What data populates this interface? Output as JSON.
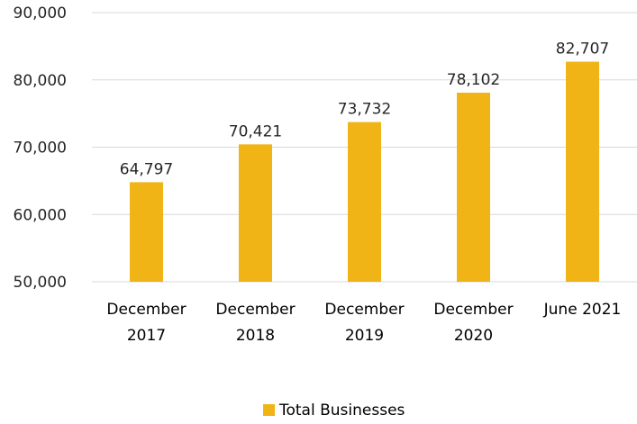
{
  "chart_data": {
    "type": "bar",
    "categories": [
      [
        "December",
        "2017"
      ],
      [
        "December",
        "2018"
      ],
      [
        "December",
        "2019"
      ],
      [
        "December",
        "2020"
      ],
      [
        "June 2021"
      ]
    ],
    "series": [
      {
        "name": "Total Businesses",
        "values": [
          64797,
          70421,
          73732,
          78102,
          82707
        ],
        "data_labels": [
          "64,797",
          "70,421",
          "73,732",
          "78,102",
          "82,707"
        ],
        "color": "#F0B416"
      }
    ],
    "ylim": [
      50000,
      90000
    ],
    "yticks": [
      50000,
      60000,
      70000,
      80000,
      90000
    ],
    "ytick_labels": [
      "50,000",
      "60,000",
      "70,000",
      "80,000",
      "90,000"
    ],
    "grid": true,
    "legend_position": "bottom",
    "colors": {
      "bar": "#F0B416",
      "grid": "#D9D9D9",
      "text": "#262626"
    }
  }
}
